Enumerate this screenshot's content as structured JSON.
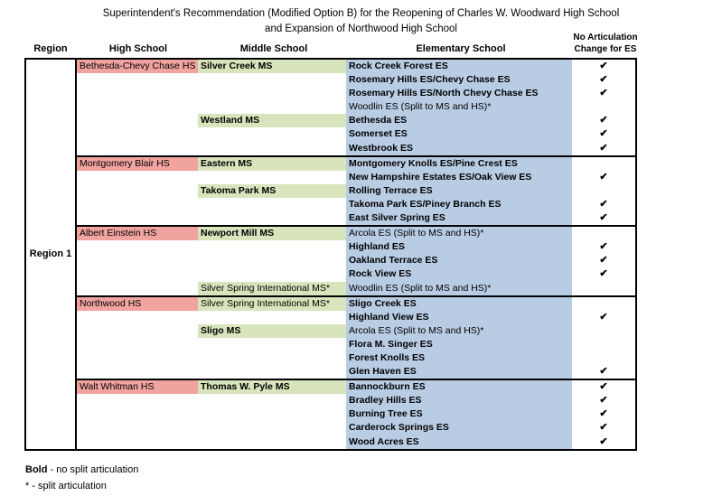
{
  "title": {
    "line1": "Superintendent's Recommendation (Modified Option B) for the Reopening of Charles W. Woodward High School",
    "line2": "and Expansion of Northwood High School"
  },
  "columns": {
    "region": "Region",
    "high_school": "High School",
    "middle_school": "Middle School",
    "elementary_school": "Elementary School",
    "check_line1": "No Articulation",
    "check_line2": "Change for ES"
  },
  "region_label": "Region 1",
  "check_mark": "✔",
  "colors": {
    "high_school_bg": "#F1A3A0",
    "middle_school_bg": "#D8E4BC",
    "elementary_bg": "#B8CCE4",
    "border": "#000000"
  },
  "sections": [
    {
      "high_school": {
        "name": "Bethesda-Chevy Chase HS",
        "bold": false
      },
      "middle_schools": [
        {
          "name": "Silver Creek MS",
          "bold": true,
          "row": 0
        },
        {
          "name": "Westland MS",
          "bold": true,
          "row": 4
        }
      ],
      "rows": [
        {
          "es": "Rock Creek Forest ES",
          "bold": true,
          "check": true
        },
        {
          "es": "Rosemary Hills ES/Chevy Chase ES",
          "bold": true,
          "check": true
        },
        {
          "es": "Rosemary Hills ES/North Chevy Chase ES",
          "bold": true,
          "check": true
        },
        {
          "es": "Woodlin ES (Split to MS and HS)*",
          "bold": false,
          "check": false
        },
        {
          "es": "Bethesda ES",
          "bold": true,
          "check": true
        },
        {
          "es": "Somerset ES",
          "bold": true,
          "check": true
        },
        {
          "es": "Westbrook ES",
          "bold": true,
          "check": true
        }
      ]
    },
    {
      "high_school": {
        "name": "Montgomery Blair HS",
        "bold": false
      },
      "middle_schools": [
        {
          "name": "Eastern MS",
          "bold": true,
          "row": 0
        },
        {
          "name": "Takoma Park MS",
          "bold": true,
          "row": 2
        }
      ],
      "rows": [
        {
          "es": "Montgomery Knolls ES/Pine Crest ES",
          "bold": true,
          "check": false
        },
        {
          "es": "New Hampshire Estates ES/Oak View ES",
          "bold": true,
          "check": true
        },
        {
          "es": "Rolling Terrace ES",
          "bold": true,
          "check": false
        },
        {
          "es": "Takoma Park ES/Piney Branch ES",
          "bold": true,
          "check": true
        },
        {
          "es": "East Silver Spring ES",
          "bold": true,
          "check": true
        }
      ]
    },
    {
      "high_school": {
        "name": "Albert Einstein HS",
        "bold": false
      },
      "middle_schools": [
        {
          "name": "Newport Mill MS",
          "bold": true,
          "row": 0
        },
        {
          "name": "Silver Spring International MS*",
          "bold": false,
          "row": 4
        }
      ],
      "rows": [
        {
          "es": "Arcola ES (Split to MS and HS)*",
          "bold": false,
          "check": false
        },
        {
          "es": "Highland ES",
          "bold": true,
          "check": true
        },
        {
          "es": "Oakland Terrace ES",
          "bold": true,
          "check": true
        },
        {
          "es": "Rock View ES",
          "bold": true,
          "check": true
        },
        {
          "es": "Woodlin ES (Split to MS and HS)*",
          "bold": false,
          "check": false
        }
      ]
    },
    {
      "high_school": {
        "name": "Northwood HS",
        "bold": false
      },
      "middle_schools": [
        {
          "name": "Silver Spring International MS*",
          "bold": false,
          "row": 0
        },
        {
          "name": "Sligo MS",
          "bold": true,
          "row": 2
        }
      ],
      "rows": [
        {
          "es": "Sligo Creek ES",
          "bold": true,
          "check": false
        },
        {
          "es": "Highland View ES",
          "bold": true,
          "check": true
        },
        {
          "es": "Arcola ES (Split to MS and HS)*",
          "bold": false,
          "check": false
        },
        {
          "es": "Flora M. Singer ES",
          "bold": true,
          "check": false
        },
        {
          "es": "Forest Knolls ES",
          "bold": true,
          "check": false
        },
        {
          "es": "Glen Haven ES",
          "bold": true,
          "check": true
        }
      ]
    },
    {
      "high_school": {
        "name": "Walt Whitman HS",
        "bold": false
      },
      "middle_schools": [
        {
          "name": "Thomas W. Pyle MS",
          "bold": true,
          "row": 0
        }
      ],
      "rows": [
        {
          "es": "Bannockburn ES",
          "bold": true,
          "check": true
        },
        {
          "es": "Bradley Hills ES",
          "bold": true,
          "check": true
        },
        {
          "es": "Burning Tree ES",
          "bold": true,
          "check": true
        },
        {
          "es": "Carderock Springs ES",
          "bold": true,
          "check": true
        },
        {
          "es": "Wood Acres ES",
          "bold": true,
          "check": true
        }
      ]
    }
  ],
  "legend": {
    "bold_term": "Bold",
    "bold_desc": " - no split articulation",
    "split_term": "*",
    "split_desc": " - split articulation"
  }
}
